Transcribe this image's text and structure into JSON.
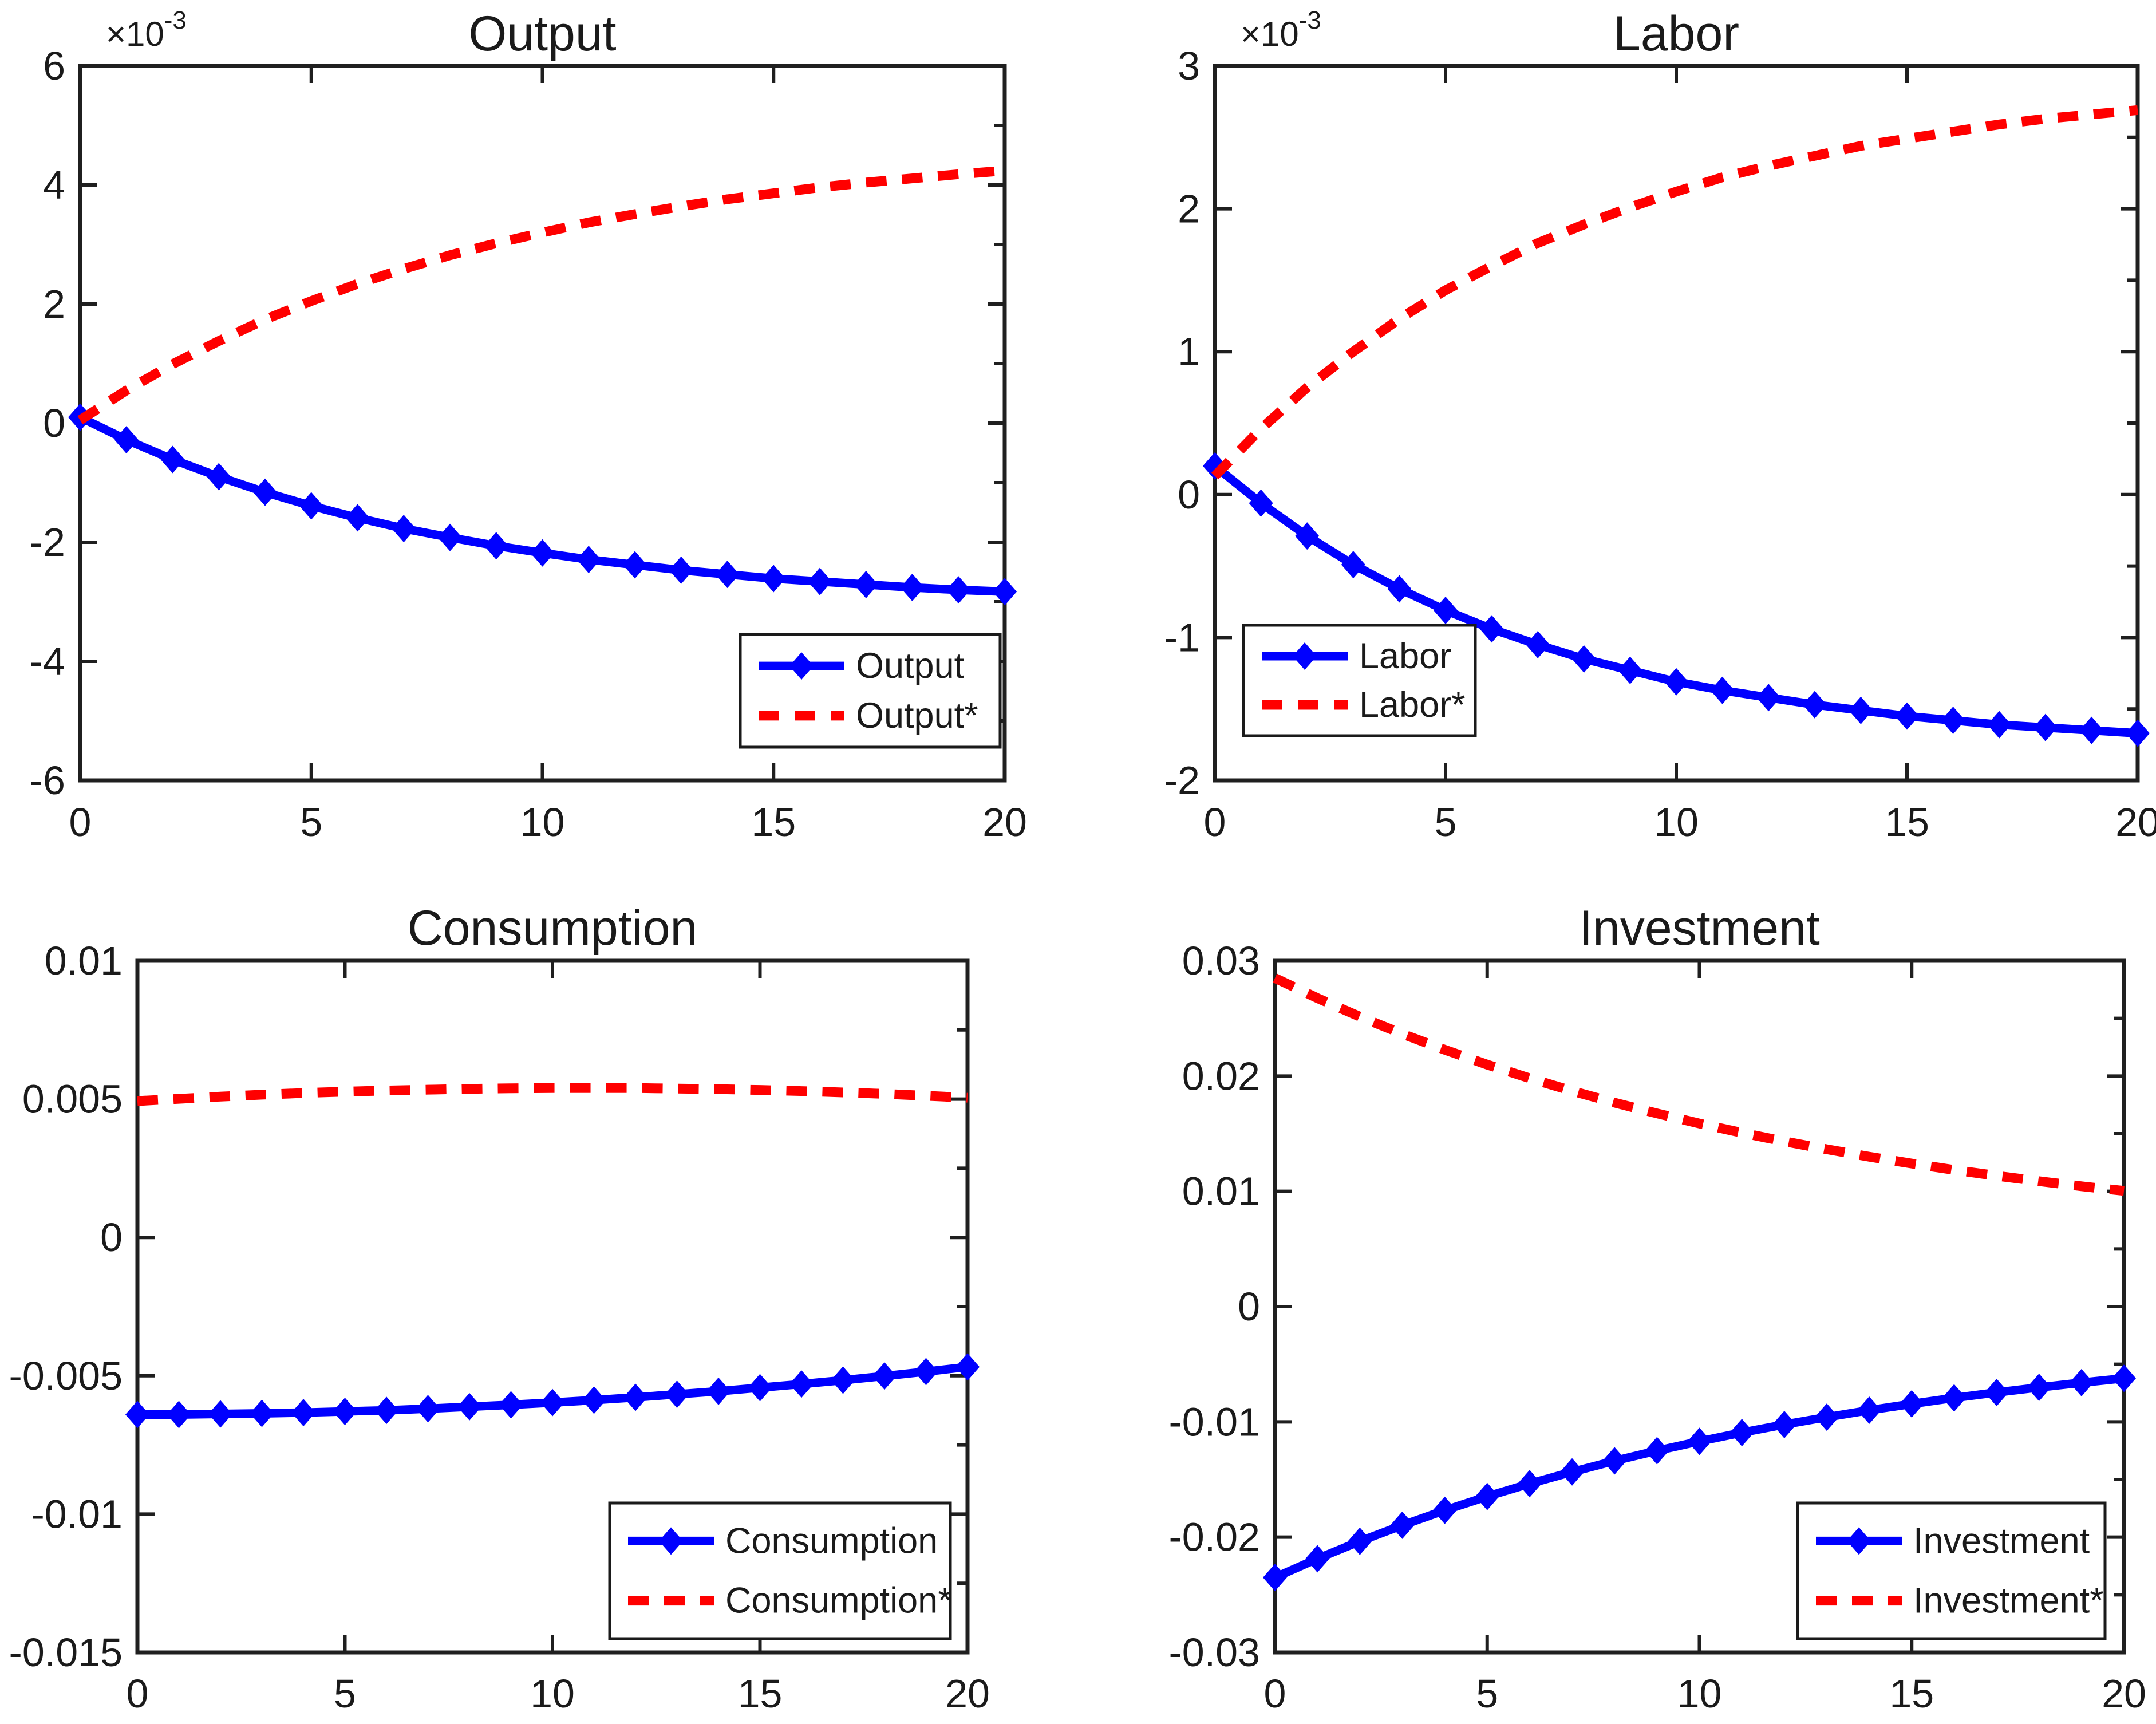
{
  "figure": {
    "background": "#ffffff",
    "axis_color": "#1f1f1f",
    "text_color": "#1a1a1a",
    "blue": "#0000ff",
    "red": "#ff0000"
  },
  "chart_data": [
    {
      "type": "line",
      "title": "Output",
      "y_exponent_base": "×10",
      "y_exponent_power": "-3",
      "xlim": [
        0,
        20
      ],
      "ylim": [
        -0.006,
        0.006
      ],
      "xticks": [
        0,
        5,
        10,
        15,
        20
      ],
      "xtick_labels": [
        "0",
        "5",
        "10",
        "15",
        "20"
      ],
      "ytick_values": [
        -0.006,
        -0.004,
        -0.002,
        0,
        0.002,
        0.004,
        0.006
      ],
      "ytick_labels": [
        "-6",
        "-4",
        "-2",
        "0",
        "2",
        "4",
        "6"
      ],
      "grid": false,
      "legend_loc": "southeast",
      "x": [
        0,
        1,
        2,
        3,
        4,
        5,
        6,
        7,
        8,
        9,
        10,
        11,
        12,
        13,
        14,
        15,
        16,
        17,
        18,
        19,
        20
      ],
      "series": [
        {
          "name": "Output",
          "color": "blue",
          "style": "solid-marker",
          "values": [
            0.0001,
            -0.00028,
            -0.00061,
            -0.0009,
            -0.00116,
            -0.00139,
            -0.00159,
            -0.00177,
            -0.00192,
            -0.00206,
            -0.00218,
            -0.00229,
            -0.00238,
            -0.00247,
            -0.00254,
            -0.00261,
            -0.00266,
            -0.00271,
            -0.00276,
            -0.0028,
            -0.00283
          ]
        },
        {
          "name": "Output*",
          "color": "red",
          "style": "dotted",
          "values": [
            5e-05,
            0.00055,
            0.00099,
            0.00138,
            0.00174,
            0.00205,
            0.00234,
            0.00259,
            0.00282,
            0.00302,
            0.0032,
            0.00337,
            0.00351,
            0.00364,
            0.00376,
            0.00386,
            0.00396,
            0.00404,
            0.00411,
            0.00418,
            0.00424
          ]
        }
      ]
    },
    {
      "type": "line",
      "title": "Labor",
      "y_exponent_base": "×10",
      "y_exponent_power": "-3",
      "xlim": [
        0,
        20
      ],
      "ylim": [
        -0.002,
        0.003
      ],
      "xticks": [
        0,
        5,
        10,
        15,
        20
      ],
      "xtick_labels": [
        "0",
        "5",
        "10",
        "15",
        "20"
      ],
      "ytick_values": [
        -0.002,
        -0.001,
        0,
        0.001,
        0.002,
        0.003
      ],
      "ytick_labels": [
        "-2",
        "-1",
        "0",
        "1",
        "2",
        "3"
      ],
      "grid": false,
      "legend_loc": "southwest",
      "x": [
        0,
        1,
        2,
        3,
        4,
        5,
        6,
        7,
        8,
        9,
        10,
        11,
        12,
        13,
        14,
        15,
        16,
        17,
        18,
        19,
        20
      ],
      "series": [
        {
          "name": "Labor",
          "color": "blue",
          "style": "solid-marker",
          "values": [
            0.0002,
            -6e-05,
            -0.00029,
            -0.00049,
            -0.00066,
            -0.00081,
            -0.00094,
            -0.00105,
            -0.00115,
            -0.00123,
            -0.00131,
            -0.00137,
            -0.00142,
            -0.00147,
            -0.00151,
            -0.00155,
            -0.00158,
            -0.00161,
            -0.00163,
            -0.00165,
            -0.00167
          ]
        },
        {
          "name": "Labor*",
          "color": "red",
          "style": "dotted",
          "values": [
            0.00013,
            0.00046,
            0.00075,
            0.001,
            0.00123,
            0.00143,
            0.0016,
            0.00176,
            0.00189,
            0.00201,
            0.00212,
            0.00222,
            0.0023,
            0.00237,
            0.00244,
            0.00249,
            0.00254,
            0.00259,
            0.00263,
            0.00266,
            0.00269
          ]
        }
      ]
    },
    {
      "type": "line",
      "title": "Consumption",
      "y_exponent_base": null,
      "y_exponent_power": null,
      "xlim": [
        0,
        20
      ],
      "ylim": [
        -0.015,
        0.01
      ],
      "xticks": [
        0,
        5,
        10,
        15,
        20
      ],
      "xtick_labels": [
        "0",
        "5",
        "10",
        "15",
        "20"
      ],
      "ytick_values": [
        -0.015,
        -0.01,
        -0.005,
        0,
        0.005,
        0.01
      ],
      "ytick_labels": [
        "-0.015",
        "-0.01",
        "-0.005",
        "0",
        "0.005",
        "0.01"
      ],
      "grid": false,
      "legend_loc": "southeast",
      "x": [
        0,
        1,
        2,
        3,
        4,
        5,
        6,
        7,
        8,
        9,
        10,
        11,
        12,
        13,
        14,
        15,
        16,
        17,
        18,
        19,
        20
      ],
      "series": [
        {
          "name": "Consumption",
          "color": "blue",
          "style": "solid-marker",
          "values": [
            -0.0064,
            -0.0064,
            -0.00638,
            -0.00636,
            -0.00633,
            -0.00629,
            -0.00625,
            -0.00619,
            -0.00612,
            -0.00605,
            -0.00597,
            -0.00588,
            -0.00578,
            -0.00567,
            -0.00556,
            -0.00543,
            -0.0053,
            -0.00516,
            -0.00501,
            -0.00485,
            -0.00468
          ]
        },
        {
          "name": "Consumption*",
          "color": "red",
          "style": "dotted",
          "values": [
            0.00493,
            0.00501,
            0.00509,
            0.00516,
            0.00522,
            0.00527,
            0.00531,
            0.00534,
            0.00537,
            0.00539,
            0.0054,
            0.0054,
            0.0054,
            0.00538,
            0.00536,
            0.00533,
            0.00529,
            0.00524,
            0.00519,
            0.00512,
            0.00505
          ]
        }
      ]
    },
    {
      "type": "line",
      "title": "Investment",
      "y_exponent_base": null,
      "y_exponent_power": null,
      "xlim": [
        0,
        20
      ],
      "ylim": [
        -0.03,
        0.03
      ],
      "xticks": [
        0,
        5,
        10,
        15,
        20
      ],
      "xtick_labels": [
        "0",
        "5",
        "10",
        "15",
        "20"
      ],
      "ytick_values": [
        -0.03,
        -0.02,
        -0.01,
        0,
        0.01,
        0.02,
        0.03
      ],
      "ytick_labels": [
        "-0.03",
        "-0.02",
        "-0.01",
        "0",
        "0.01",
        "0.02",
        "0.03"
      ],
      "grid": false,
      "legend_loc": "southeast",
      "x": [
        0,
        1,
        2,
        3,
        4,
        5,
        6,
        7,
        8,
        9,
        10,
        11,
        12,
        13,
        14,
        15,
        16,
        17,
        18,
        19,
        20
      ],
      "series": [
        {
          "name": "Investment",
          "color": "blue",
          "style": "solid-marker",
          "values": [
            -0.0235,
            -0.02187,
            -0.02036,
            -0.01897,
            -0.01767,
            -0.01647,
            -0.01536,
            -0.01434,
            -0.01338,
            -0.0125,
            -0.01169,
            -0.01093,
            -0.01023,
            -0.00959,
            -0.00899,
            -0.00844,
            -0.00792,
            -0.00745,
            -0.00701,
            -0.0066,
            -0.00622
          ]
        },
        {
          "name": "Investment*",
          "color": "red",
          "style": "dotted",
          "values": [
            0.0285,
            0.02676,
            0.02515,
            0.02366,
            0.02228,
            0.02099,
            0.01981,
            0.01871,
            0.01769,
            0.01676,
            0.01588,
            0.01508,
            0.01433,
            0.01365,
            0.013,
            0.01241,
            0.01186,
            0.01135,
            0.01088,
            0.01044,
            0.01004
          ]
        }
      ]
    }
  ]
}
